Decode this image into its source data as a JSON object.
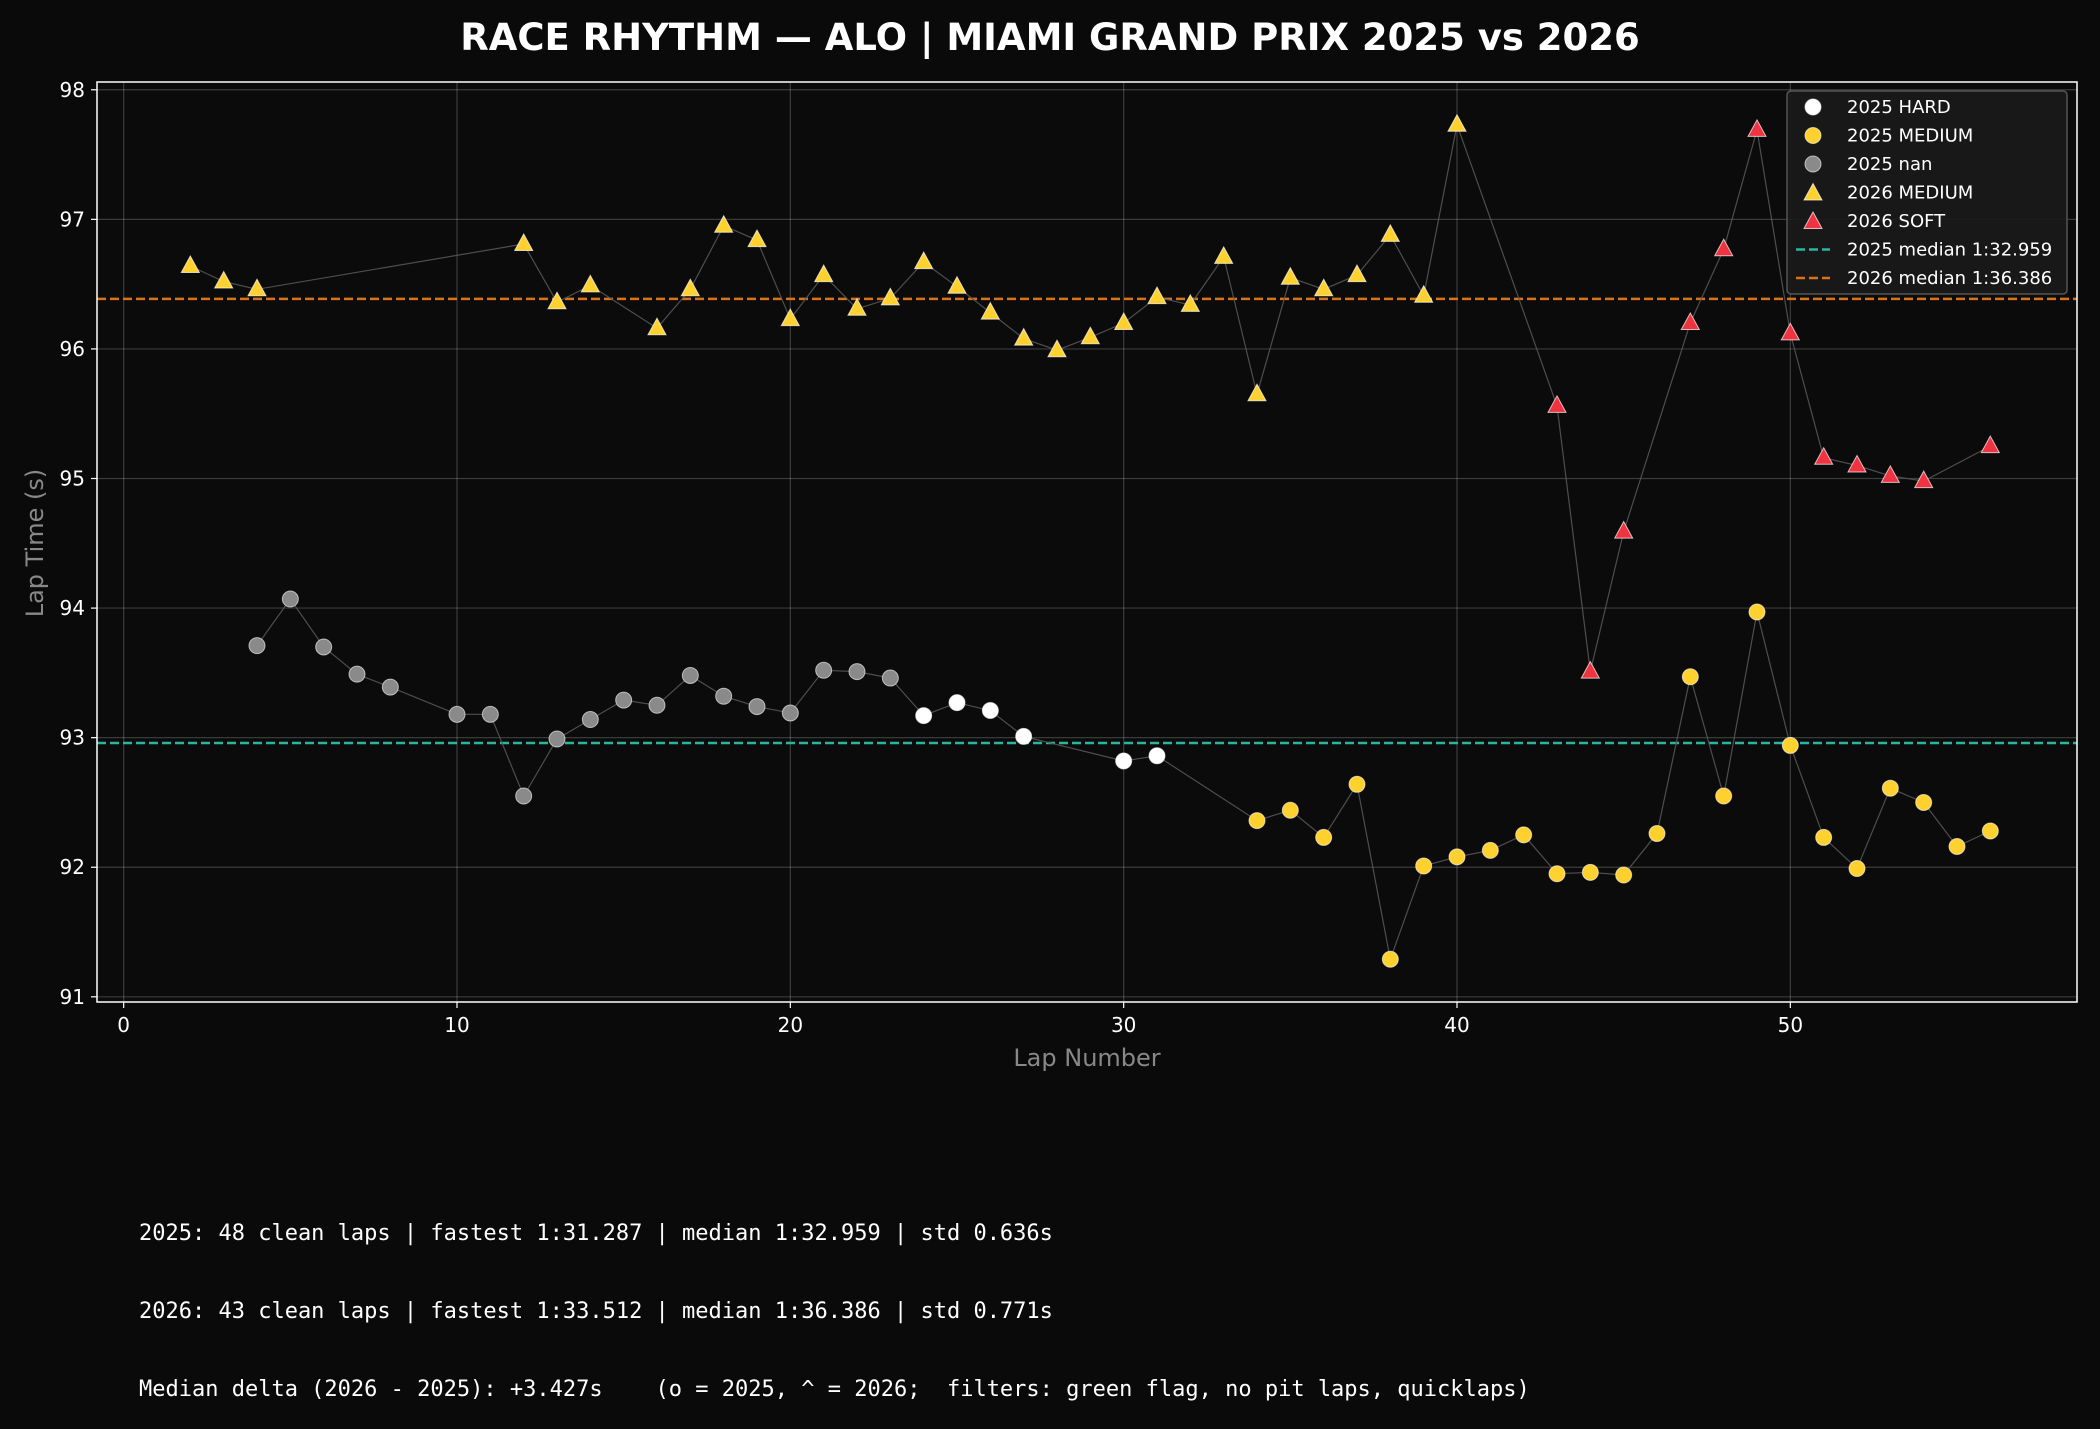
{
  "chart_data": {
    "type": "scatter",
    "title": "RACE RHYTHM — ALO | MIAMI GRAND PRIX 2025 vs 2026",
    "xlabel": "Lap Number",
    "ylabel": "Lap Time (s)",
    "xlim": [
      -0.8,
      58.6
    ],
    "ylim": [
      90.96,
      98.06
    ],
    "xticks": [
      0,
      10,
      20,
      30,
      40,
      50
    ],
    "yticks": [
      91,
      92,
      93,
      94,
      95,
      96,
      97,
      98
    ],
    "grid": true,
    "legend_position": "top-right",
    "colors": {
      "background": "#0a0a0a",
      "hard": "#ffffff",
      "medium": "#ffd12e",
      "nan": "#8a8a8a",
      "soft": "#ef3340",
      "median_2025": "#2ab5a0",
      "median_2026": "#d9731a",
      "connector": "#555555"
    },
    "series": [
      {
        "name": "2025 HARD",
        "year": 2025,
        "compound": "HARD",
        "marker": "circle",
        "color": "#ffffff",
        "points": [
          [
            24,
            93.17
          ],
          [
            25,
            93.27
          ],
          [
            26,
            93.21
          ],
          [
            27,
            93.01
          ],
          [
            30,
            92.82
          ],
          [
            31,
            92.86
          ]
        ]
      },
      {
        "name": "2025 MEDIUM",
        "year": 2025,
        "compound": "MEDIUM",
        "marker": "circle",
        "color": "#ffd12e",
        "points": [
          [
            34,
            92.36
          ],
          [
            35,
            92.44
          ],
          [
            36,
            92.23
          ],
          [
            37,
            92.64
          ],
          [
            38,
            91.29
          ],
          [
            39,
            92.01
          ],
          [
            40,
            92.08
          ],
          [
            41,
            92.13
          ],
          [
            42,
            92.25
          ],
          [
            43,
            91.95
          ],
          [
            44,
            91.96
          ],
          [
            45,
            91.94
          ],
          [
            46,
            92.26
          ],
          [
            47,
            93.47
          ],
          [
            48,
            92.55
          ],
          [
            49,
            93.97
          ],
          [
            50,
            92.94
          ],
          [
            51,
            92.23
          ],
          [
            52,
            91.99
          ],
          [
            53,
            92.61
          ],
          [
            54,
            92.5
          ],
          [
            55,
            92.16
          ],
          [
            56,
            92.28
          ]
        ]
      },
      {
        "name": "2025 nan",
        "year": 2025,
        "compound": "nan",
        "marker": "circle",
        "color": "#8a8a8a",
        "points": [
          [
            4,
            93.71
          ],
          [
            5,
            94.07
          ],
          [
            6,
            93.7
          ],
          [
            7,
            93.49
          ],
          [
            8,
            93.39
          ],
          [
            10,
            93.18
          ],
          [
            11,
            93.18
          ],
          [
            12,
            92.55
          ],
          [
            13,
            92.99
          ],
          [
            14,
            93.14
          ],
          [
            15,
            93.29
          ],
          [
            16,
            93.25
          ],
          [
            17,
            93.48
          ],
          [
            18,
            93.32
          ],
          [
            19,
            93.24
          ],
          [
            20,
            93.19
          ],
          [
            21,
            93.52
          ],
          [
            22,
            93.51
          ],
          [
            23,
            93.46
          ]
        ]
      },
      {
        "name": "2026 MEDIUM",
        "year": 2026,
        "compound": "MEDIUM",
        "marker": "triangle",
        "color": "#ffd12e",
        "points": [
          [
            2,
            96.64
          ],
          [
            3,
            96.52
          ],
          [
            4,
            96.46
          ],
          [
            12,
            96.81
          ],
          [
            13,
            96.36
          ],
          [
            14,
            96.49
          ],
          [
            16,
            96.16
          ],
          [
            17,
            96.46
          ],
          [
            18,
            96.95
          ],
          [
            19,
            96.84
          ],
          [
            20,
            96.23
          ],
          [
            21,
            96.57
          ],
          [
            22,
            96.31
          ],
          [
            23,
            96.39
          ],
          [
            24,
            96.67
          ],
          [
            25,
            96.48
          ],
          [
            26,
            96.28
          ],
          [
            27,
            96.08
          ],
          [
            28,
            95.99
          ],
          [
            29,
            96.09
          ],
          [
            30,
            96.2
          ],
          [
            31,
            96.4
          ],
          [
            32,
            96.34
          ],
          [
            33,
            96.71
          ],
          [
            34,
            95.65
          ],
          [
            35,
            96.55
          ],
          [
            36,
            96.46
          ],
          [
            37,
            96.57
          ],
          [
            38,
            96.88
          ],
          [
            39,
            96.41
          ],
          [
            40,
            97.73
          ]
        ]
      },
      {
        "name": "2026 SOFT",
        "year": 2026,
        "compound": "SOFT",
        "marker": "triangle",
        "color": "#ef3340",
        "points": [
          [
            43,
            95.56
          ],
          [
            44,
            93.51
          ],
          [
            45,
            94.59
          ],
          [
            47,
            96.2
          ],
          [
            48,
            96.77
          ],
          [
            49,
            97.69
          ],
          [
            50,
            96.12
          ],
          [
            51,
            95.16
          ],
          [
            52,
            95.1
          ],
          [
            53,
            95.02
          ],
          [
            54,
            94.98
          ],
          [
            56,
            95.25
          ]
        ]
      }
    ],
    "reference_lines": [
      {
        "name": "2025 median 1:32.959",
        "y": 92.959,
        "color": "#2ab5a0",
        "style": "dashed"
      },
      {
        "name": "2026 median 1:36.386",
        "y": 96.386,
        "color": "#d9731a",
        "style": "dashed"
      }
    ]
  },
  "summary": {
    "line1": "2025: 48 clean laps | fastest 1:31.287 | median 1:32.959 | std 0.636s",
    "line2": "2026: 43 clean laps | fastest 1:33.512 | median 1:36.386 | std 0.771s",
    "line3": "Median delta (2026 - 2025): +3.427s    (o = 2025, ^ = 2026;  filters: green flag, no pit laps, quicklaps)"
  }
}
